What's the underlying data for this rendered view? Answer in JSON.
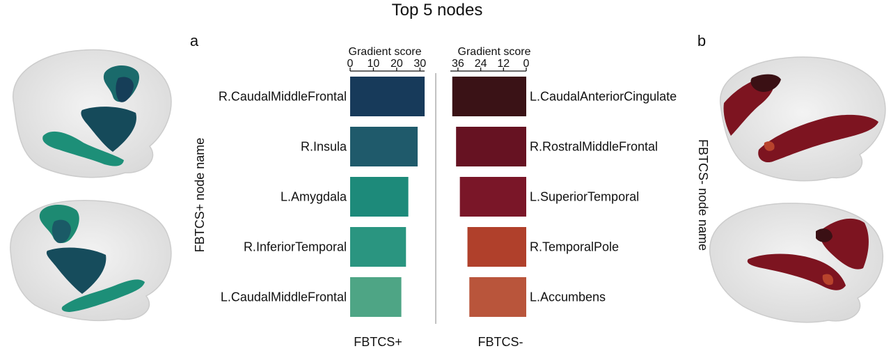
{
  "title": "Top 5 nodes",
  "panels": {
    "a": "a",
    "b": "b"
  },
  "colors": {
    "brain_shell": "#e6e6e6",
    "brain_edge": "#cfcfcf",
    "pos_region_dark": "#174b5c",
    "pos_region_light": "#1d8f78",
    "neg_region_dark": "#4a1014",
    "neg_region": "#7d1420",
    "neg_region_orange": "#b8432c"
  },
  "chart_data": [
    {
      "type": "bar",
      "orientation": "horizontal",
      "xlabel": "Gradient score",
      "ylabel": "FBTCS+ node name",
      "group_label": "FBTCS+",
      "xlim": [
        0,
        32
      ],
      "xticks": [
        0,
        10,
        20,
        30
      ],
      "categories": [
        "R.CaudalMiddleFrontal",
        "R.Insula",
        "L.Amygdala",
        "R.InferiorTemporal",
        "L.CaudalMiddleFrontal"
      ],
      "values": [
        32,
        29,
        25,
        24,
        22
      ],
      "colors": [
        "#173a5a",
        "#1f5a6b",
        "#1d8a7a",
        "#2a9580",
        "#4ea585"
      ]
    },
    {
      "type": "bar",
      "orientation": "horizontal",
      "direction": "reversed",
      "xlabel": "Gradient score",
      "ylabel": "FBTCS- node name",
      "group_label": "FBTCS-",
      "xlim": [
        0,
        40
      ],
      "xticks": [
        36,
        24,
        12,
        0
      ],
      "categories": [
        "L.CaudalAnteriorCingulate",
        "R.RostralMiddleFrontal",
        "L.SuperiorTemporal",
        "R.TemporalPole",
        "L.Accumbens"
      ],
      "values": [
        39,
        37,
        35,
        31,
        30
      ],
      "colors": [
        "#3a1216",
        "#661222",
        "#7a1628",
        "#b0402b",
        "#b9553b"
      ]
    }
  ]
}
